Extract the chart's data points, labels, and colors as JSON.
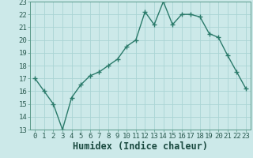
{
  "x": [
    0,
    1,
    2,
    3,
    4,
    5,
    6,
    7,
    8,
    9,
    10,
    11,
    12,
    13,
    14,
    15,
    16,
    17,
    18,
    19,
    20,
    21,
    22,
    23
  ],
  "y": [
    17,
    16,
    15,
    13,
    15.5,
    16.5,
    17.2,
    17.5,
    18.0,
    18.5,
    19.5,
    20.0,
    22.2,
    21.2,
    23.0,
    21.2,
    22.0,
    22.0,
    21.8,
    20.5,
    20.2,
    18.8,
    17.5,
    16.2
  ],
  "line_color": "#2a7a6a",
  "marker": "+",
  "markersize": 4,
  "linewidth": 1.0,
  "xlabel": "Humidex (Indice chaleur)",
  "xlim": [
    -0.5,
    23.5
  ],
  "ylim": [
    13,
    23
  ],
  "yticks": [
    13,
    14,
    15,
    16,
    17,
    18,
    19,
    20,
    21,
    22,
    23
  ],
  "xticks": [
    0,
    1,
    2,
    3,
    4,
    5,
    6,
    7,
    8,
    9,
    10,
    11,
    12,
    13,
    14,
    15,
    16,
    17,
    18,
    19,
    20,
    21,
    22,
    23
  ],
  "bg_color": "#cce9e9",
  "grid_color": "#aad4d4",
  "tick_fontsize": 6.5,
  "xlabel_fontsize": 8.5,
  "spine_color": "#5a9a8a"
}
